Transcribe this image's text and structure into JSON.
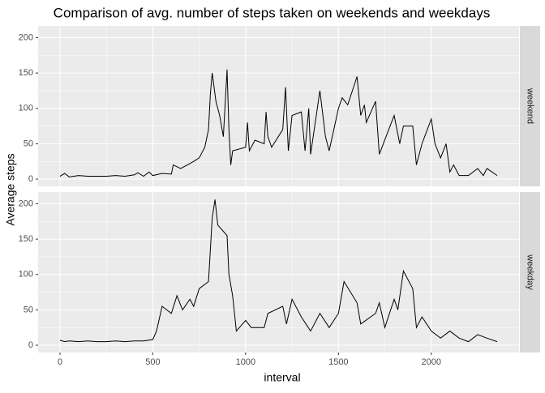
{
  "chart_data": {
    "type": "line",
    "facet": true,
    "title": "Comparison of avg. number of steps taken on weekends and weekdays",
    "x_label": "interval",
    "y_label": "Average steps",
    "xlim": [
      -117.75,
      2472.75
    ],
    "xticks": [
      0,
      500,
      1000,
      1500,
      2000
    ],
    "ylim": [
      -10.3,
      216.6
    ],
    "yticks": [
      0,
      50,
      100,
      150,
      200
    ],
    "grid": true,
    "series": [
      {
        "name": "weekend",
        "color": "#000000",
        "x": [
          0,
          25,
          50,
          100,
          150,
          200,
          250,
          300,
          350,
          400,
          420,
          450,
          480,
          500,
          550,
          600,
          610,
          650,
          700,
          720,
          750,
          780,
          800,
          810,
          820,
          830,
          840,
          860,
          880,
          900,
          910,
          920,
          930,
          1000,
          1010,
          1020,
          1050,
          1100,
          1110,
          1120,
          1140,
          1200,
          1215,
          1230,
          1250,
          1300,
          1320,
          1340,
          1350,
          1400,
          1430,
          1450,
          1500,
          1520,
          1550,
          1600,
          1620,
          1640,
          1650,
          1700,
          1720,
          1800,
          1830,
          1850,
          1900,
          1920,
          1950,
          2000,
          2020,
          2050,
          2080,
          2100,
          2120,
          2150,
          2200,
          2250,
          2280,
          2300,
          2355
        ],
        "values": [
          4,
          8,
          3,
          5,
          4,
          4,
          4,
          5,
          4,
          6,
          9,
          4,
          10,
          5,
          8,
          7,
          20,
          15,
          22,
          25,
          30,
          45,
          70,
          120,
          150,
          130,
          110,
          90,
          60,
          155,
          70,
          20,
          40,
          45,
          80,
          40,
          55,
          50,
          95,
          60,
          45,
          70,
          130,
          40,
          90,
          95,
          40,
          100,
          35,
          125,
          60,
          40,
          100,
          115,
          105,
          145,
          90,
          105,
          80,
          110,
          35,
          90,
          50,
          75,
          75,
          20,
          50,
          85,
          50,
          30,
          50,
          10,
          20,
          5,
          5,
          15,
          5,
          15,
          5
        ]
      },
      {
        "name": "weekday",
        "color": "#000000",
        "x": [
          0,
          25,
          50,
          100,
          150,
          200,
          250,
          300,
          350,
          400,
          450,
          500,
          520,
          550,
          600,
          630,
          660,
          700,
          720,
          750,
          800,
          820,
          835,
          850,
          900,
          910,
          930,
          950,
          1000,
          1030,
          1100,
          1120,
          1200,
          1220,
          1250,
          1300,
          1350,
          1400,
          1450,
          1500,
          1530,
          1600,
          1620,
          1700,
          1720,
          1750,
          1800,
          1820,
          1850,
          1900,
          1920,
          1950,
          2000,
          2050,
          2100,
          2150,
          2200,
          2250,
          2300,
          2355
        ],
        "values": [
          7,
          5,
          6,
          5,
          6,
          5,
          5,
          6,
          5,
          6,
          6,
          8,
          20,
          55,
          45,
          70,
          50,
          65,
          55,
          80,
          90,
          180,
          206,
          170,
          155,
          100,
          70,
          20,
          35,
          25,
          25,
          45,
          55,
          30,
          65,
          40,
          20,
          45,
          25,
          45,
          90,
          60,
          30,
          45,
          60,
          25,
          65,
          50,
          105,
          80,
          25,
          40,
          20,
          10,
          20,
          10,
          5,
          15,
          10,
          5
        ]
      }
    ]
  }
}
